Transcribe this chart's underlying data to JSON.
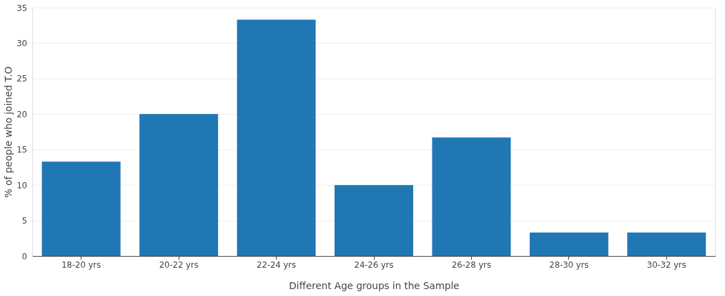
{
  "chart_data": {
    "type": "bar",
    "xlabel": "Different Age groups in the Sample",
    "ylabel": "% of people who joined T.O",
    "categories": [
      "18-20 yrs",
      "20-22 yrs",
      "22-24 yrs",
      "24-26 yrs",
      "26-28 yrs",
      "28-30 yrs",
      "30-32 yrs"
    ],
    "values": [
      13.3,
      20,
      33.3,
      10,
      16.7,
      3.3,
      3.3
    ],
    "color": "#1f77b4",
    "ylim": [
      0,
      35
    ],
    "yticks": [
      0,
      5,
      10,
      15,
      20,
      25,
      30,
      35
    ],
    "grid": "y"
  }
}
